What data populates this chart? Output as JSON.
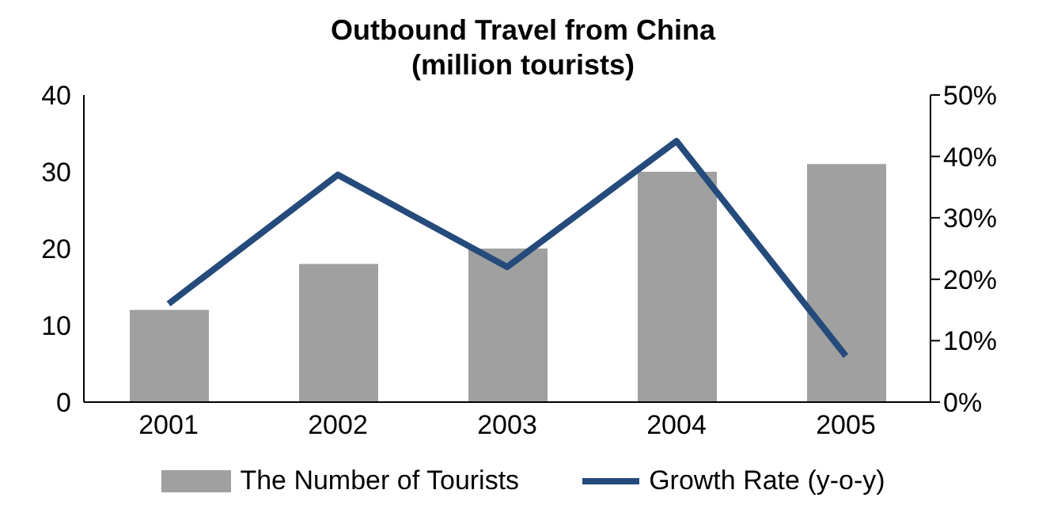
{
  "chart_data": {
    "type": "bar",
    "title": "Outbound Travel from China\n(million tourists)",
    "categories": [
      "2001",
      "2002",
      "2003",
      "2004",
      "2005"
    ],
    "series": [
      {
        "name": "The Number of Tourists",
        "color": "#a0a0a0",
        "values": [
          12,
          18,
          20,
          30,
          31
        ]
      },
      {
        "name": "Growth Rate (y-o-y)",
        "type": "line",
        "axis": "y2",
        "color": "#254a7c",
        "values": [
          16,
          37,
          22,
          42.5,
          7.5
        ]
      }
    ],
    "ylim": [
      0,
      40
    ],
    "yticks": [
      0,
      10,
      20,
      30,
      40
    ],
    "y2lim": [
      0,
      50
    ],
    "y2ticks": [
      {
        "value": 0,
        "label": "0%"
      },
      {
        "value": 10,
        "label": "10%"
      },
      {
        "value": 20,
        "label": "20%"
      },
      {
        "value": 30,
        "label": "30%"
      },
      {
        "value": 40,
        "label": "40%"
      },
      {
        "value": 50,
        "label": "50%"
      }
    ],
    "grid": false,
    "legend": "bottom",
    "marker": "none",
    "line_style": "solid"
  }
}
